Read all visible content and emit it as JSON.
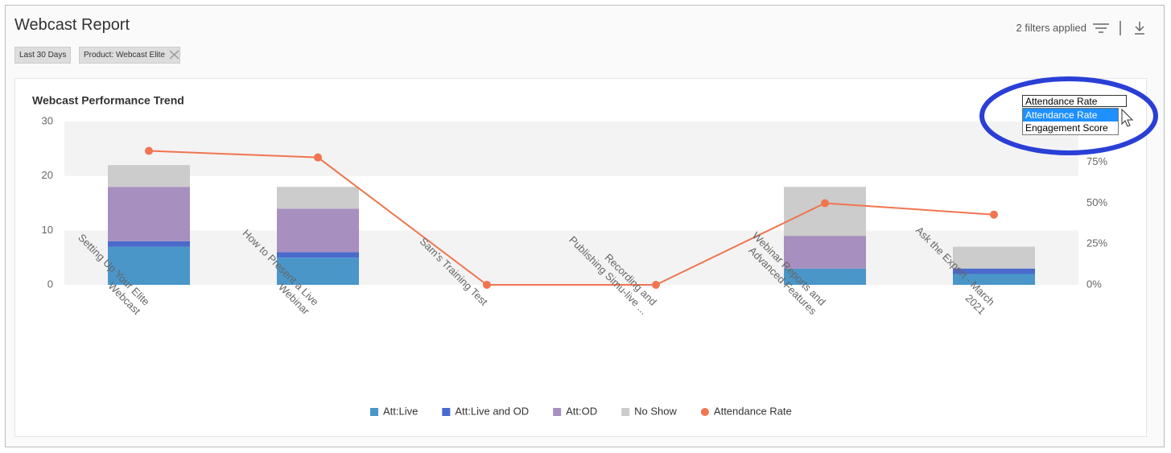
{
  "header": {
    "title": "Webcast Report",
    "filters": [
      "Last 30 Days",
      "Product: Webcast Elite"
    ],
    "filters_applied": "2 filters applied"
  },
  "dropdown": {
    "selected": "Attendance Rate",
    "options": [
      "Attendance Rate",
      "Engagement Score"
    ]
  },
  "chart_data": {
    "type": "bar",
    "stacked": true,
    "title": "Webcast Performance Trend",
    "categories": [
      "Setting Up Your Elite Webcast",
      "How to Present a Live Webinar",
      "Sam's Training Test",
      "Recording and Publishing Simu-live ...",
      "Webinar Reports and Advanced Features",
      "Ask the Expert - March 2021"
    ],
    "series": [
      {
        "name": "Att:Live",
        "color": "#4a96c8",
        "values": [
          7,
          5,
          0,
          0,
          3,
          2
        ]
      },
      {
        "name": "Att:Live and OD",
        "color": "#4a6acc",
        "values": [
          1,
          1,
          0,
          0,
          0,
          1
        ]
      },
      {
        "name": "Att:OD",
        "color": "#a78fbf",
        "values": [
          10,
          8,
          0,
          0,
          6,
          0
        ]
      },
      {
        "name": "No Show",
        "color": "#cccccc",
        "values": [
          4,
          4,
          0,
          0,
          9,
          4
        ]
      },
      {
        "name": "Attendance Rate",
        "color": "#f07550",
        "type": "line",
        "axis": "y2",
        "values": [
          82,
          78,
          0,
          0,
          50,
          43
        ]
      }
    ],
    "ylim": [
      0,
      30
    ],
    "yticks": [
      0,
      10,
      20,
      30
    ],
    "y2lim": [
      0,
      100
    ],
    "y2ticks": [
      {
        "value": 0,
        "label": "0%"
      },
      {
        "value": 25,
        "label": "25%"
      },
      {
        "value": 50,
        "label": "50%"
      },
      {
        "value": 75,
        "label": "75%"
      }
    ],
    "legend": "bottom"
  }
}
